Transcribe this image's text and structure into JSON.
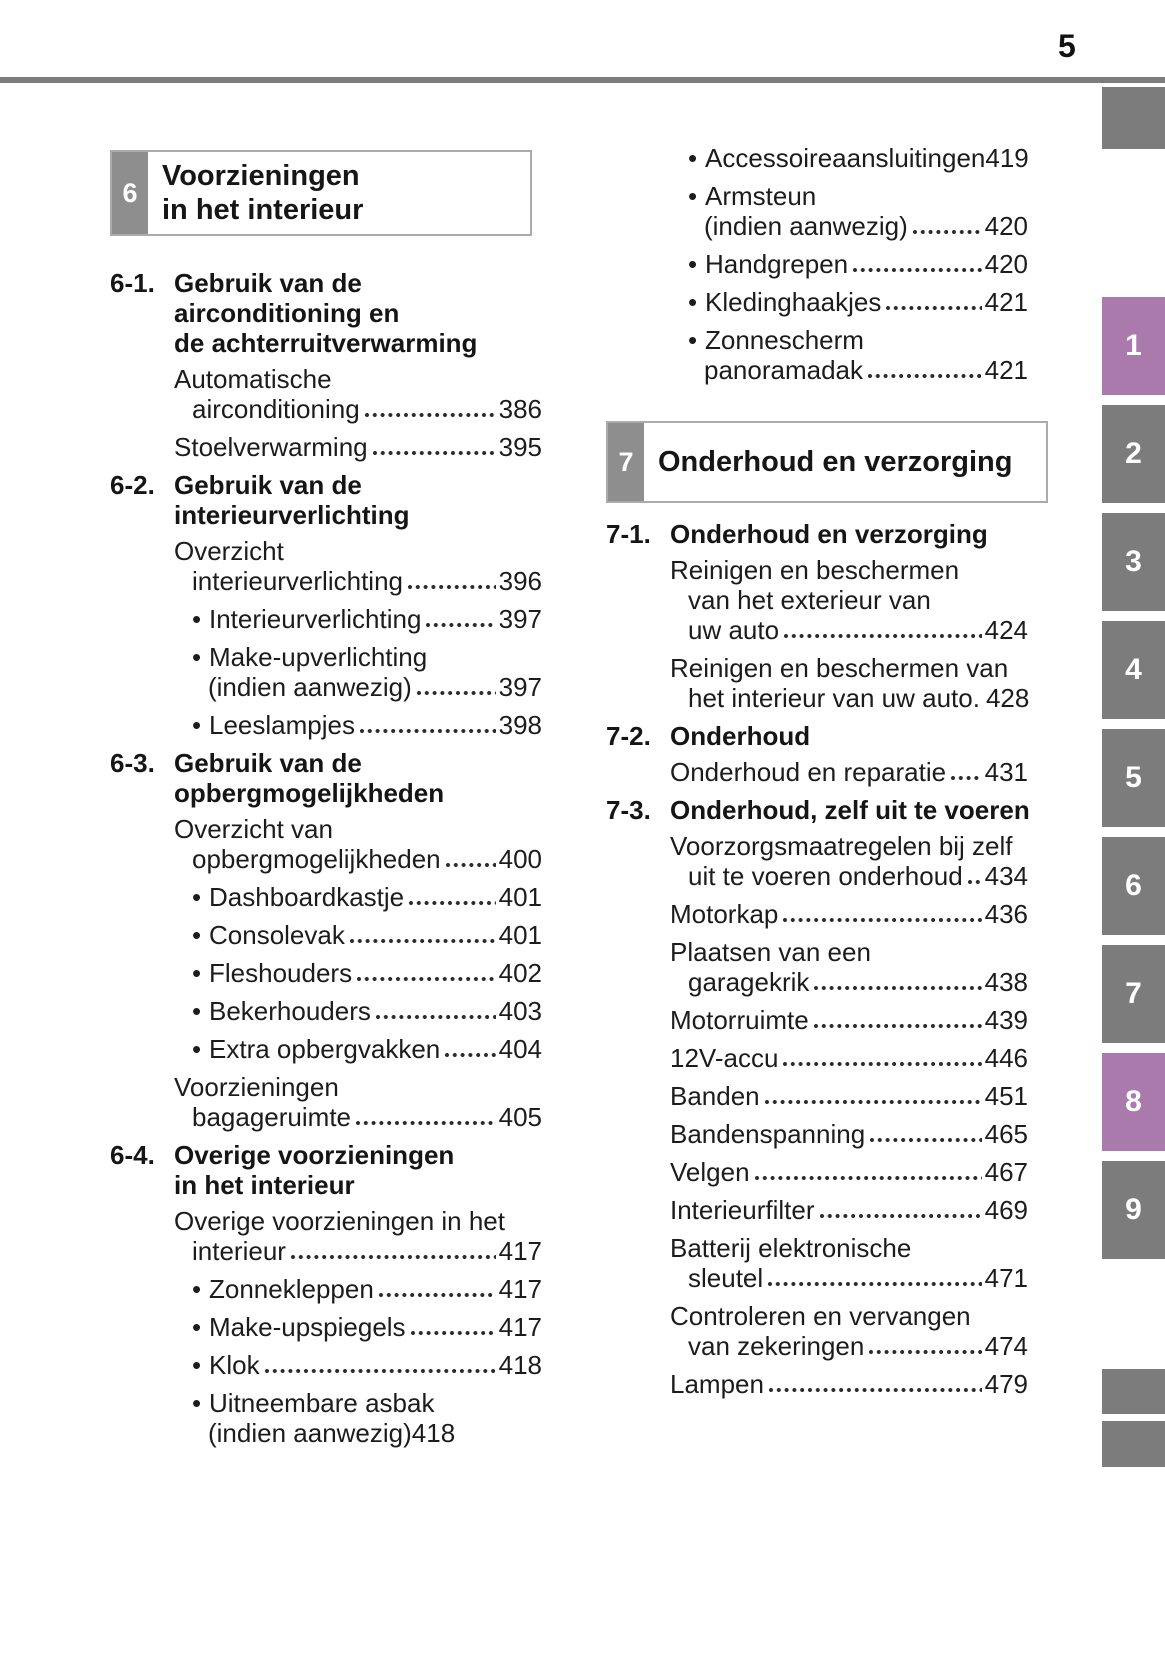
{
  "page_number": "5",
  "colors": {
    "accent": "#ab7aad",
    "tab_gray": "#7c7c7c",
    "rule_gray": "#7c7c7c",
    "chapter_num_bg": "#8e8e8e"
  },
  "columns": {
    "left": {
      "blocks": [
        {
          "type": "chapter",
          "num": "6",
          "title_lines": [
            "Voorzieningen",
            "in het interieur"
          ]
        },
        {
          "type": "section",
          "num": "6-1.",
          "title_lines": [
            "Gebruik van de",
            "airconditioning en",
            "de achterruitverwarming"
          ]
        },
        {
          "type": "entry",
          "lines": [
            {
              "text": "Automatische"
            },
            {
              "text": "airconditioning",
              "page": "386",
              "leader": "dots",
              "hang": true
            }
          ]
        },
        {
          "type": "entry",
          "lines": [
            {
              "text": "Stoelverwarming",
              "page": "395",
              "leader": "dots"
            }
          ]
        },
        {
          "type": "section",
          "num": "6-2.",
          "title_lines": [
            "Gebruik van de",
            "interieurverlichting"
          ]
        },
        {
          "type": "entry",
          "lines": [
            {
              "text": "Overzicht"
            },
            {
              "text": "interieurverlichting",
              "page": "396",
              "leader": "dots",
              "hang": true
            }
          ]
        },
        {
          "type": "bullet",
          "lines": [
            {
              "text": "Interieurverlichting",
              "page": "397",
              "leader": "dots"
            }
          ]
        },
        {
          "type": "bullet",
          "lines": [
            {
              "text": "Make-upverlichting"
            },
            {
              "text": "(indien aanwezig)",
              "page": "397",
              "leader": "dots",
              "cont": true
            }
          ]
        },
        {
          "type": "bullet",
          "lines": [
            {
              "text": "Leeslampjes",
              "page": "398",
              "leader": "dots"
            }
          ]
        },
        {
          "type": "section",
          "num": "6-3.",
          "title_lines": [
            "Gebruik van de",
            "opbergmogelijkheden"
          ]
        },
        {
          "type": "entry",
          "lines": [
            {
              "text": "Overzicht van"
            },
            {
              "text": "opbergmogelijkheden",
              "page": "400",
              "leader": "dots",
              "hang": true
            }
          ]
        },
        {
          "type": "bullet",
          "lines": [
            {
              "text": "Dashboardkastje",
              "page": "401",
              "leader": "dots"
            }
          ]
        },
        {
          "type": "bullet",
          "lines": [
            {
              "text": "Consolevak",
              "page": "401",
              "leader": "dots"
            }
          ]
        },
        {
          "type": "bullet",
          "lines": [
            {
              "text": "Fleshouders",
              "page": "402",
              "leader": "dots"
            }
          ]
        },
        {
          "type": "bullet",
          "lines": [
            {
              "text": "Bekerhouders",
              "page": "403",
              "leader": "dots"
            }
          ]
        },
        {
          "type": "bullet",
          "lines": [
            {
              "text": "Extra opbergvakken",
              "page": "404",
              "leader": "dots"
            }
          ]
        },
        {
          "type": "entry",
          "lines": [
            {
              "text": "Voorzieningen"
            },
            {
              "text": "bagageruimte",
              "page": "405",
              "leader": "dots",
              "hang": true
            }
          ]
        },
        {
          "type": "section",
          "num": "6-4.",
          "title_lines": [
            "Overige voorzieningen",
            "in het interieur"
          ]
        },
        {
          "type": "entry",
          "lines": [
            {
              "text": "Overige voorzieningen in het"
            },
            {
              "text": "interieur",
              "page": "417",
              "leader": "dots",
              "hang": true
            }
          ]
        },
        {
          "type": "bullet",
          "lines": [
            {
              "text": "Zonnekleppen",
              "page": "417",
              "leader": "dots"
            }
          ]
        },
        {
          "type": "bullet",
          "lines": [
            {
              "text": "Make-upspiegels",
              "page": "417",
              "leader": "dots"
            }
          ]
        },
        {
          "type": "bullet",
          "lines": [
            {
              "text": "Klok",
              "page": "418",
              "leader": "dots"
            }
          ]
        },
        {
          "type": "bullet",
          "lines": [
            {
              "text": "Uitneembare asbak"
            },
            {
              "text": "(indien aanwezig)",
              "page": "418",
              "leader": "none",
              "cont": true
            }
          ]
        }
      ]
    },
    "right": {
      "blocks": [
        {
          "type": "bullet",
          "lines": [
            {
              "text": "Accessoireaansluitingen",
              "page": "419",
              "leader": "none"
            }
          ]
        },
        {
          "type": "bullet",
          "lines": [
            {
              "text": "Armsteun"
            },
            {
              "text": "(indien aanwezig)",
              "page": "420",
              "leader": "dots",
              "cont": true
            }
          ]
        },
        {
          "type": "bullet",
          "lines": [
            {
              "text": "Handgrepen",
              "page": "420",
              "leader": "dots"
            }
          ]
        },
        {
          "type": "bullet",
          "lines": [
            {
              "text": "Kledinghaakjes",
              "page": "421",
              "leader": "dots"
            }
          ]
        },
        {
          "type": "bullet",
          "lines": [
            {
              "text": "Zonnescherm"
            },
            {
              "text": "panoramadak",
              "page": "421",
              "leader": "dots",
              "cont": true
            }
          ]
        },
        {
          "type": "chapter",
          "num": "7",
          "title_lines": [
            "Onderhoud en verzorging"
          ]
        },
        {
          "type": "section",
          "num": "7-1.",
          "title_lines": [
            "Onderhoud en verzorging"
          ]
        },
        {
          "type": "entry",
          "lines": [
            {
              "text": "Reinigen en beschermen"
            },
            {
              "text": "van het exterieur van",
              "hang": true
            },
            {
              "text": "uw auto",
              "page": "424",
              "leader": "dots",
              "hang": true
            }
          ]
        },
        {
          "type": "entry",
          "lines": [
            {
              "text": "Reinigen en beschermen van"
            },
            {
              "text": "het interieur van uw auto.",
              "page": "428",
              "leader": "space",
              "hang": true
            }
          ]
        },
        {
          "type": "section",
          "num": "7-2.",
          "title_lines": [
            "Onderhoud"
          ]
        },
        {
          "type": "entry",
          "lines": [
            {
              "text": "Onderhoud en reparatie",
              "page": "431",
              "leader": "dots"
            }
          ]
        },
        {
          "type": "section",
          "num": "7-3.",
          "title_lines": [
            "Onderhoud, zelf uit te voeren"
          ]
        },
        {
          "type": "entry",
          "lines": [
            {
              "text": "Voorzorgsmaatregelen bij zelf"
            },
            {
              "text": "uit te voeren onderhoud",
              "page": "434",
              "leader": "dots",
              "hang": true
            }
          ]
        },
        {
          "type": "entry",
          "lines": [
            {
              "text": "Motorkap",
              "page": "436",
              "leader": "dots"
            }
          ]
        },
        {
          "type": "entry",
          "lines": [
            {
              "text": "Plaatsen van een"
            },
            {
              "text": "garagekrik",
              "page": "438",
              "leader": "dots",
              "hang": true
            }
          ]
        },
        {
          "type": "entry",
          "lines": [
            {
              "text": "Motorruimte",
              "page": "439",
              "leader": "dots"
            }
          ]
        },
        {
          "type": "entry",
          "lines": [
            {
              "text": "12V-accu",
              "page": "446",
              "leader": "dots"
            }
          ]
        },
        {
          "type": "entry",
          "lines": [
            {
              "text": "Banden",
              "page": "451",
              "leader": "dots"
            }
          ]
        },
        {
          "type": "entry",
          "lines": [
            {
              "text": "Bandenspanning",
              "page": "465",
              "leader": "dots"
            }
          ]
        },
        {
          "type": "entry",
          "lines": [
            {
              "text": "Velgen",
              "page": "467",
              "leader": "dots"
            }
          ]
        },
        {
          "type": "entry",
          "lines": [
            {
              "text": "Interieurfilter",
              "page": "469",
              "leader": "dots"
            }
          ]
        },
        {
          "type": "entry",
          "lines": [
            {
              "text": "Batterij elektronische"
            },
            {
              "text": "sleutel",
              "page": "471",
              "leader": "dots",
              "hang": true
            }
          ]
        },
        {
          "type": "entry",
          "lines": [
            {
              "text": "Controleren en vervangen"
            },
            {
              "text": "van zekeringen",
              "page": "474",
              "leader": "dots",
              "hang": true
            }
          ]
        },
        {
          "type": "entry",
          "lines": [
            {
              "text": "Lampen",
              "page": "479",
              "leader": "dots"
            }
          ]
        }
      ]
    }
  },
  "side_tabs": {
    "bullet_char": "•",
    "tabs": [
      {
        "label": "1",
        "active": true
      },
      {
        "label": "2",
        "active": false
      },
      {
        "label": "3",
        "active": false
      },
      {
        "label": "4",
        "active": false
      },
      {
        "label": "5",
        "active": false
      },
      {
        "label": "6",
        "active": false
      },
      {
        "label": "7",
        "active": false
      },
      {
        "label": "8",
        "active": true
      },
      {
        "label": "9",
        "active": false
      }
    ]
  }
}
